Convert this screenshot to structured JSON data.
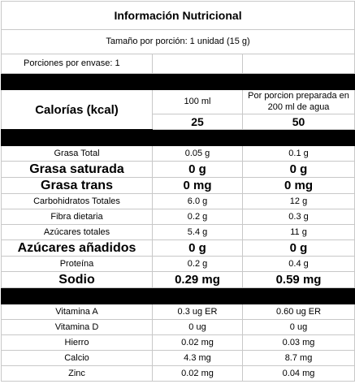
{
  "title": "Información Nutricional",
  "serving_size": "Tamaño por porción:  1 unidad (15 g)",
  "servings_per_container": "Porciones por envase: 1",
  "calories": {
    "label": "Calorías (kcal)",
    "col1_header": "100 ml",
    "col2_header": "Por porcion preparada en 200 ml de agua",
    "col1_value": "25",
    "col2_value": "50"
  },
  "nutrients": [
    {
      "name": "Grasa Total",
      "v1": "0.05 g",
      "v2": "0.1 g",
      "bold": false
    },
    {
      "name": "Grasa saturada",
      "v1": "0 g",
      "v2": "0 g",
      "bold": true
    },
    {
      "name": "Grasa trans",
      "v1": "0 mg",
      "v2": "0 mg",
      "bold": true
    },
    {
      "name": "Carbohidratos Totales",
      "v1": "6.0 g",
      "v2": "12 g",
      "bold": false
    },
    {
      "name": "Fibra dietaria",
      "v1": "0.2 g",
      "v2": "0.3 g",
      "bold": false
    },
    {
      "name": "Azúcares totales",
      "v1": "5.4 g",
      "v2": "11 g",
      "bold": false
    },
    {
      "name": "Azúcares añadidos",
      "v1": "0 g",
      "v2": "0 g",
      "bold": true
    },
    {
      "name": "Proteína",
      "v1": "0.2 g",
      "v2": "0.4 g",
      "bold": false
    },
    {
      "name": "Sodio",
      "v1": "0.29 mg",
      "v2": "0.59 mg",
      "bold": true
    }
  ],
  "micronutrients": [
    {
      "name": "Vitamina A",
      "v1": "0.3 ug ER",
      "v2": "0.60 ug ER"
    },
    {
      "name": "Vitamina D",
      "v1": "0 ug",
      "v2": "0 ug"
    },
    {
      "name": "Hierro",
      "v1": "0.02 mg",
      "v2": "0.03 mg"
    },
    {
      "name": "Calcio",
      "v1": "4.3 mg",
      "v2": "8.7 mg"
    },
    {
      "name": "Zinc",
      "v1": "0.02 mg",
      "v2": "0.04 mg"
    }
  ]
}
